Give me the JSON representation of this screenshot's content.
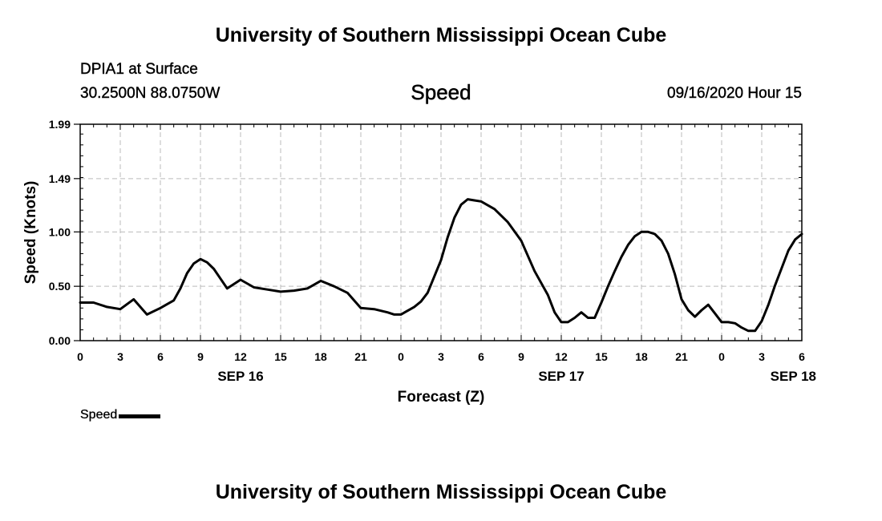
{
  "header": {
    "title": "University of Southern Mississippi Ocean Cube",
    "station": "DPIA1 at Surface",
    "coordinates": "30.2500N 88.0750W",
    "variable": "Speed",
    "datetime": "09/16/2020 Hour 15"
  },
  "footer": {
    "title": "University of Southern Mississippi Ocean Cube"
  },
  "legend": {
    "label": "Speed",
    "color": "#000000"
  },
  "chart_data": {
    "type": "line",
    "title": "Speed",
    "xlabel": "Forecast (Z)",
    "ylabel": "Speed (Knots)",
    "x_unit": "hours since 09/16/2020 00Z",
    "xlim": [
      0,
      54
    ],
    "ylim": [
      0,
      1.99
    ],
    "yticks": [
      0,
      0.5,
      1.0,
      1.49,
      1.99
    ],
    "ytick_labels": [
      "0.00",
      "0.50",
      "1.00",
      "1.49",
      "1.99"
    ],
    "xticks": [
      0,
      3,
      6,
      9,
      12,
      15,
      18,
      21,
      24,
      27,
      30,
      33,
      36,
      39,
      42,
      45,
      48,
      51,
      54
    ],
    "xtick_labels": [
      "0",
      "3",
      "6",
      "9",
      "12",
      "15",
      "18",
      "21",
      "0",
      "3",
      "6",
      "9",
      "12",
      "15",
      "18",
      "21",
      "0",
      "3",
      "6"
    ],
    "date_labels": [
      {
        "x": 12,
        "label": "SEP 16"
      },
      {
        "x": 36,
        "label": "SEP 17"
      },
      {
        "x": 54,
        "label": "SEP 18"
      }
    ],
    "grid": true,
    "series": [
      {
        "name": "Speed",
        "color": "#000000",
        "x": [
          0,
          1,
          2,
          3,
          4,
          5,
          6,
          7,
          7.5,
          8,
          8.5,
          9,
          9.5,
          10,
          10.5,
          11,
          12,
          13,
          14,
          15,
          16,
          17,
          18,
          19,
          20,
          21,
          22,
          23,
          23.5,
          24,
          25,
          25.5,
          26,
          27,
          27.5,
          28,
          28.5,
          29,
          29.5,
          30,
          31,
          32,
          33,
          34,
          35,
          35.5,
          36,
          36.5,
          37,
          37.5,
          38,
          38.5,
          39,
          39.5,
          40,
          40.5,
          41,
          41.5,
          42,
          42.5,
          43,
          43.5,
          44,
          44.5,
          45,
          45.5,
          46,
          46.5,
          47,
          47.5,
          48,
          48.5,
          49,
          49.5,
          50,
          50.5,
          51,
          51.5,
          52,
          52.5,
          53,
          53.5,
          54
        ],
        "y": [
          0.35,
          0.35,
          0.31,
          0.29,
          0.38,
          0.24,
          0.3,
          0.37,
          0.48,
          0.62,
          0.71,
          0.75,
          0.72,
          0.66,
          0.57,
          0.48,
          0.56,
          0.49,
          0.47,
          0.45,
          0.46,
          0.48,
          0.55,
          0.5,
          0.44,
          0.3,
          0.29,
          0.26,
          0.24,
          0.24,
          0.31,
          0.36,
          0.44,
          0.74,
          0.95,
          1.13,
          1.25,
          1.3,
          1.29,
          1.28,
          1.21,
          1.09,
          0.92,
          0.64,
          0.42,
          0.26,
          0.17,
          0.17,
          0.21,
          0.26,
          0.21,
          0.21,
          0.35,
          0.5,
          0.64,
          0.77,
          0.88,
          0.96,
          1.0,
          1.0,
          0.98,
          0.92,
          0.8,
          0.61,
          0.38,
          0.28,
          0.22,
          0.28,
          0.33,
          0.25,
          0.17,
          0.17,
          0.16,
          0.12,
          0.09,
          0.09,
          0.18,
          0.33,
          0.51,
          0.67,
          0.83,
          0.93,
          0.98
        ]
      }
    ]
  }
}
